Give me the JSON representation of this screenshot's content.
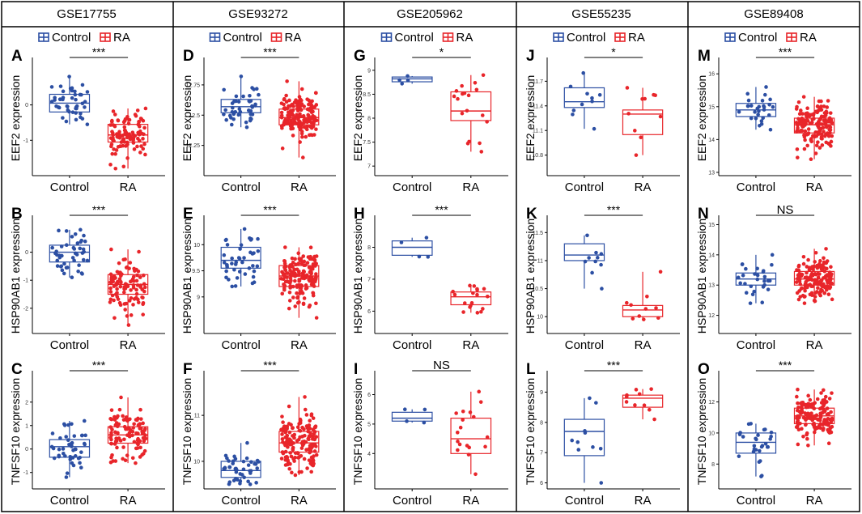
{
  "colors": {
    "control": "#2c4fa3",
    "ra": "#e8252a",
    "frame": "#000000"
  },
  "legend": {
    "control_label": "Control",
    "ra_label": "RA"
  },
  "chart_data": [
    {
      "type": "boxplot",
      "dataset": "GSE17755",
      "column": 0,
      "row": 0,
      "panel": "A",
      "gene": "EEF2",
      "ylabel": "EEF2 expression",
      "categories": [
        "Control",
        "RA"
      ],
      "ylim": [
        -2.0,
        1.25
      ],
      "yticks": [
        -1,
        0
      ],
      "groups": [
        {
          "name": "Control",
          "n": 45,
          "stats": [
            -0.55,
            -0.2,
            0.05,
            0.3,
            0.8
          ]
        },
        {
          "name": "RA",
          "n": 100,
          "stats": [
            -1.8,
            -1.05,
            -0.85,
            -0.55,
            -0.1
          ]
        }
      ],
      "sig": "***"
    },
    {
      "type": "boxplot",
      "dataset": "GSE17755",
      "column": 0,
      "row": 1,
      "panel": "B",
      "gene": "HSP90AB1",
      "ylabel": "HSP90AB1 expression",
      "categories": [
        "Control",
        "RA"
      ],
      "ylim": [
        -2.9,
        1.2
      ],
      "yticks": [
        -2,
        -1,
        0
      ],
      "groups": [
        {
          "name": "Control",
          "n": 45,
          "stats": [
            -0.9,
            -0.35,
            0.0,
            0.25,
            0.8
          ]
        },
        {
          "name": "RA",
          "n": 100,
          "stats": [
            -2.6,
            -1.5,
            -1.15,
            -0.8,
            0.1
          ]
        }
      ],
      "sig": "***"
    },
    {
      "type": "boxplot",
      "dataset": "GSE17755",
      "column": 0,
      "row": 2,
      "panel": "C",
      "gene": "TNFSF10",
      "ylabel": "TNFSF10 expression",
      "categories": [
        "Control",
        "RA"
      ],
      "ylim": [
        -1.7,
        3.2
      ],
      "yticks": [
        -1,
        0,
        1,
        2
      ],
      "groups": [
        {
          "name": "Control",
          "n": 45,
          "stats": [
            -1.2,
            -0.35,
            0.1,
            0.4,
            1.2
          ]
        },
        {
          "name": "RA",
          "n": 100,
          "stats": [
            -0.6,
            0.25,
            0.6,
            0.95,
            2.2
          ]
        }
      ],
      "sig": "***"
    },
    {
      "type": "boxplot",
      "dataset": "GSE93272",
      "column": 1,
      "row": 0,
      "panel": "D",
      "gene": "EEF2",
      "ylabel": "EEF2 expression",
      "categories": [
        "Control",
        "RA"
      ],
      "ylim": [
        12.0,
        12.95
      ],
      "yticks": [
        12.25,
        12.5,
        12.75
      ],
      "groups": [
        {
          "name": "Control",
          "n": 43,
          "stats": [
            12.4,
            12.52,
            12.57,
            12.63,
            12.82
          ]
        },
        {
          "name": "RA",
          "n": 232,
          "stats": [
            12.15,
            12.42,
            12.48,
            12.55,
            12.78
          ]
        }
      ],
      "sig": "***"
    },
    {
      "type": "boxplot",
      "dataset": "GSE93272",
      "column": 1,
      "row": 1,
      "panel": "E",
      "gene": "HSP90AB1",
      "ylabel": "HSP90AB1 expression",
      "categories": [
        "Control",
        "RA"
      ],
      "ylim": [
        8.3,
        10.5
      ],
      "yticks": [
        9.0,
        9.5,
        10.0
      ],
      "groups": [
        {
          "name": "Control",
          "n": 43,
          "stats": [
            9.2,
            9.55,
            9.7,
            9.95,
            10.3
          ]
        },
        {
          "name": "RA",
          "n": 232,
          "stats": [
            8.6,
            9.2,
            9.4,
            9.6,
            9.95
          ]
        }
      ],
      "sig": "***"
    },
    {
      "type": "boxplot",
      "dataset": "GSE93272",
      "column": 1,
      "row": 2,
      "panel": "F",
      "gene": "TNFSF10",
      "ylabel": "TNFSF10 expression",
      "categories": [
        "Control",
        "RA"
      ],
      "ylim": [
        9.4,
        11.9
      ],
      "yticks": [
        10,
        11
      ],
      "groups": [
        {
          "name": "Control",
          "n": 43,
          "stats": [
            9.5,
            9.65,
            9.8,
            10.0,
            10.4
          ]
        },
        {
          "name": "RA",
          "n": 232,
          "stats": [
            9.7,
            10.2,
            10.4,
            10.65,
            11.4
          ]
        }
      ],
      "sig": "***"
    },
    {
      "type": "boxplot",
      "dataset": "GSE205962",
      "column": 2,
      "row": 0,
      "panel": "G",
      "gene": "EEF2",
      "ylabel": "EEF2 expression",
      "categories": [
        "Control",
        "RA"
      ],
      "ylim": [
        6.8,
        9.2
      ],
      "yticks": [
        7.0,
        7.5,
        8.0,
        8.5,
        9.0
      ],
      "groups": [
        {
          "name": "Control",
          "n": 4,
          "stats": [
            8.72,
            8.76,
            8.82,
            8.86,
            8.88
          ]
        },
        {
          "name": "RA",
          "n": 18,
          "stats": [
            7.3,
            7.95,
            8.15,
            8.55,
            8.9
          ]
        }
      ],
      "sig": "*"
    },
    {
      "type": "boxplot",
      "dataset": "GSE205962",
      "column": 2,
      "row": 1,
      "panel": "H",
      "gene": "HSP90AB1",
      "ylabel": "HSP90AB1 expression",
      "categories": [
        "Control",
        "RA"
      ],
      "ylim": [
        5.3,
        8.9
      ],
      "yticks": [
        6,
        7,
        8
      ],
      "groups": [
        {
          "name": "Control",
          "n": 4,
          "stats": [
            7.7,
            7.75,
            8.0,
            8.2,
            8.3
          ]
        },
        {
          "name": "RA",
          "n": 18,
          "stats": [
            5.95,
            6.2,
            6.45,
            6.6,
            6.8
          ]
        }
      ],
      "sig": "***"
    },
    {
      "type": "boxplot",
      "dataset": "GSE205962",
      "column": 2,
      "row": 2,
      "panel": "I",
      "gene": "TNFSF10",
      "ylabel": "TNFSF10 expression",
      "categories": [
        "Control",
        "RA"
      ],
      "ylim": [
        2.8,
        6.7
      ],
      "yticks": [
        4,
        5,
        6
      ],
      "groups": [
        {
          "name": "Control",
          "n": 4,
          "stats": [
            5.05,
            5.1,
            5.2,
            5.4,
            5.5
          ]
        },
        {
          "name": "RA",
          "n": 18,
          "stats": [
            3.3,
            4.0,
            4.5,
            5.2,
            6.1
          ]
        }
      ],
      "sig": "NS"
    },
    {
      "type": "boxplot",
      "dataset": "GSE55235",
      "column": 3,
      "row": 0,
      "panel": "J",
      "gene": "EEF2",
      "ylabel": "EEF2 expression",
      "categories": [
        "Control",
        "RA"
      ],
      "ylim": [
        10.55,
        11.95
      ],
      "yticks": [
        10.8,
        11.1,
        11.4,
        11.7
      ],
      "groups": [
        {
          "name": "Control",
          "n": 10,
          "stats": [
            11.12,
            11.38,
            11.45,
            11.62,
            11.8
          ]
        },
        {
          "name": "RA",
          "n": 10,
          "stats": [
            10.8,
            11.05,
            11.3,
            11.35,
            11.62
          ]
        }
      ],
      "sig": "*"
    },
    {
      "type": "boxplot",
      "dataset": "GSE55235",
      "column": 3,
      "row": 1,
      "panel": "K",
      "gene": "HSP90AB1",
      "ylabel": "HSP90AB1 expression",
      "categories": [
        "Control",
        "RA"
      ],
      "ylim": [
        9.7,
        11.75
      ],
      "yticks": [
        10.0,
        10.5,
        11.0,
        11.5
      ],
      "groups": [
        {
          "name": "Control",
          "n": 10,
          "stats": [
            10.5,
            11.0,
            11.1,
            11.3,
            11.45
          ]
        },
        {
          "name": "RA",
          "n": 10,
          "stats": [
            9.95,
            10.0,
            10.12,
            10.2,
            10.8
          ]
        }
      ],
      "sig": "***"
    },
    {
      "type": "boxplot",
      "dataset": "GSE55235",
      "column": 3,
      "row": 2,
      "panel": "L",
      "gene": "TNFSF10",
      "ylabel": "TNFSF10 expression",
      "categories": [
        "Control",
        "RA"
      ],
      "ylim": [
        5.8,
        9.6
      ],
      "yticks": [
        6,
        7,
        8,
        9
      ],
      "groups": [
        {
          "name": "Control",
          "n": 10,
          "stats": [
            6.0,
            6.9,
            7.7,
            8.1,
            8.8
          ]
        },
        {
          "name": "RA",
          "n": 10,
          "stats": [
            8.1,
            8.5,
            8.8,
            8.9,
            9.1
          ]
        }
      ],
      "sig": "***"
    },
    {
      "type": "boxplot",
      "dataset": "GSE89408",
      "column": 4,
      "row": 0,
      "panel": "M",
      "gene": "EEF2",
      "ylabel": "EEF2 expression",
      "categories": [
        "Control",
        "RA"
      ],
      "ylim": [
        12.9,
        16.4
      ],
      "yticks": [
        13,
        14,
        15,
        16
      ],
      "groups": [
        {
          "name": "Control",
          "n": 28,
          "stats": [
            14.3,
            14.7,
            14.9,
            15.1,
            15.6
          ]
        },
        {
          "name": "RA",
          "n": 152,
          "stats": [
            13.4,
            14.2,
            14.45,
            14.65,
            15.3
          ]
        }
      ],
      "sig": "***"
    },
    {
      "type": "boxplot",
      "dataset": "GSE89408",
      "column": 4,
      "row": 1,
      "panel": "N",
      "gene": "HSP90AB1",
      "ylabel": "HSP90AB1 expression",
      "categories": [
        "Control",
        "RA"
      ],
      "ylim": [
        11.4,
        15.2
      ],
      "yticks": [
        12,
        13,
        14,
        15
      ],
      "groups": [
        {
          "name": "Control",
          "n": 28,
          "stats": [
            12.4,
            13.0,
            13.2,
            13.4,
            14.0
          ]
        },
        {
          "name": "RA",
          "n": 152,
          "stats": [
            12.4,
            13.0,
            13.2,
            13.45,
            14.2
          ]
        }
      ],
      "sig": "NS"
    },
    {
      "type": "boxplot",
      "dataset": "GSE89408",
      "column": 4,
      "row": 2,
      "panel": "O",
      "gene": "TNFSF10",
      "ylabel": "TNFSF10 expression",
      "categories": [
        "Control",
        "RA"
      ],
      "ylim": [
        6.4,
        13.8
      ],
      "yticks": [
        8,
        10,
        12
      ],
      "groups": [
        {
          "name": "Control",
          "n": 28,
          "stats": [
            7.2,
            8.7,
            9.4,
            10.0,
            10.6
          ]
        },
        {
          "name": "RA",
          "n": 152,
          "stats": [
            9.2,
            10.6,
            11.1,
            11.6,
            12.8
          ]
        }
      ],
      "sig": "***"
    }
  ],
  "datasets": [
    "GSE17755",
    "GSE93272",
    "GSE205962",
    "GSE55235",
    "GSE89408"
  ]
}
